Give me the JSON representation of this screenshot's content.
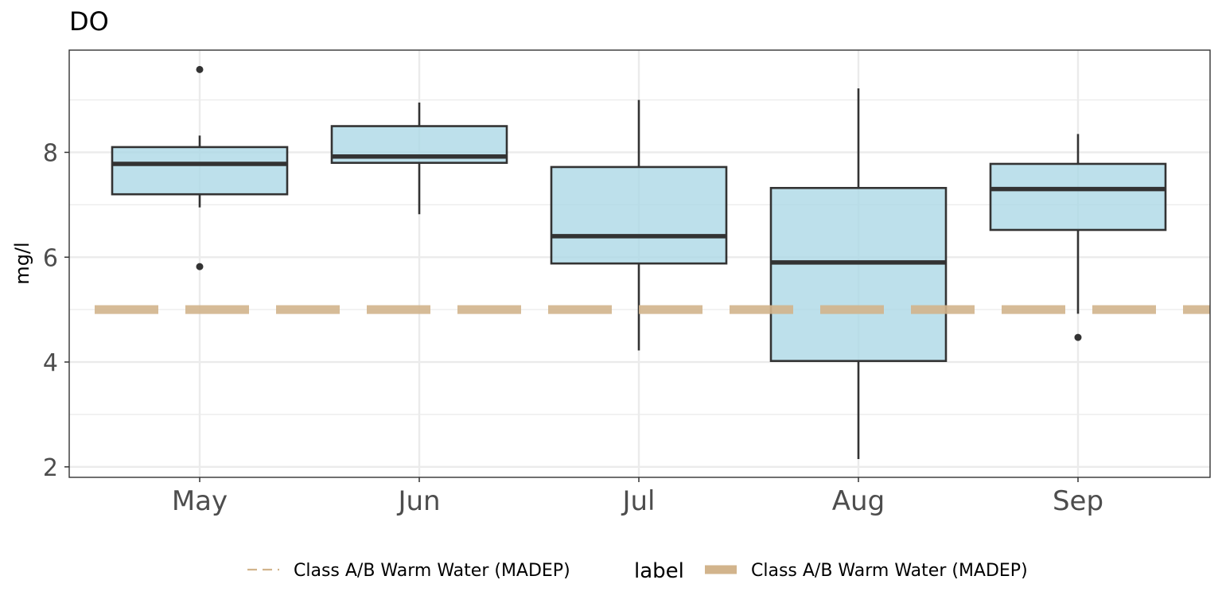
{
  "chart_data": {
    "type": "box",
    "title": "DO",
    "xlabel": "",
    "ylabel": "mg/l",
    "ylim": [
      1.8,
      9.95
    ],
    "yticks": [
      2,
      4,
      6,
      8
    ],
    "grid": true,
    "categories": [
      "May",
      "Jun",
      "Jul",
      "Aug",
      "Sep"
    ],
    "boxes": [
      {
        "category": "May",
        "whisker_low": 6.95,
        "q1": 7.2,
        "median": 7.78,
        "q3": 8.1,
        "whisker_high": 8.32,
        "outliers": [
          9.58,
          5.82
        ]
      },
      {
        "category": "Jun",
        "whisker_low": 6.82,
        "q1": 7.8,
        "median": 7.92,
        "q3": 8.5,
        "whisker_high": 8.95,
        "outliers": []
      },
      {
        "category": "Jul",
        "whisker_low": 4.22,
        "q1": 5.88,
        "median": 6.4,
        "q3": 7.72,
        "whisker_high": 9.0,
        "outliers": []
      },
      {
        "category": "Aug",
        "whisker_low": 2.15,
        "q1": 4.02,
        "median": 5.9,
        "q3": 7.32,
        "whisker_high": 9.22,
        "outliers": []
      },
      {
        "category": "Sep",
        "whisker_low": 4.92,
        "q1": 6.52,
        "median": 7.3,
        "q3": 7.78,
        "whisker_high": 8.35,
        "outliers": [
          4.47
        ]
      }
    ],
    "reference_line": {
      "label": "Class A/B Warm Water (MADEP)",
      "y": 5.0,
      "color": "#d2b48c",
      "style": "dashed"
    },
    "box_fill": "#add8e6",
    "box_stroke": "#333333",
    "legend": {
      "position": "bottom",
      "title": "label",
      "entries": [
        {
          "label": "Class A/B Warm Water (MADEP)",
          "style": "dashed",
          "color": "#d2b48c"
        },
        {
          "label": "Class A/B Warm Water (MADEP)",
          "style": "solid-thick",
          "color": "#d2b48c"
        }
      ]
    }
  }
}
